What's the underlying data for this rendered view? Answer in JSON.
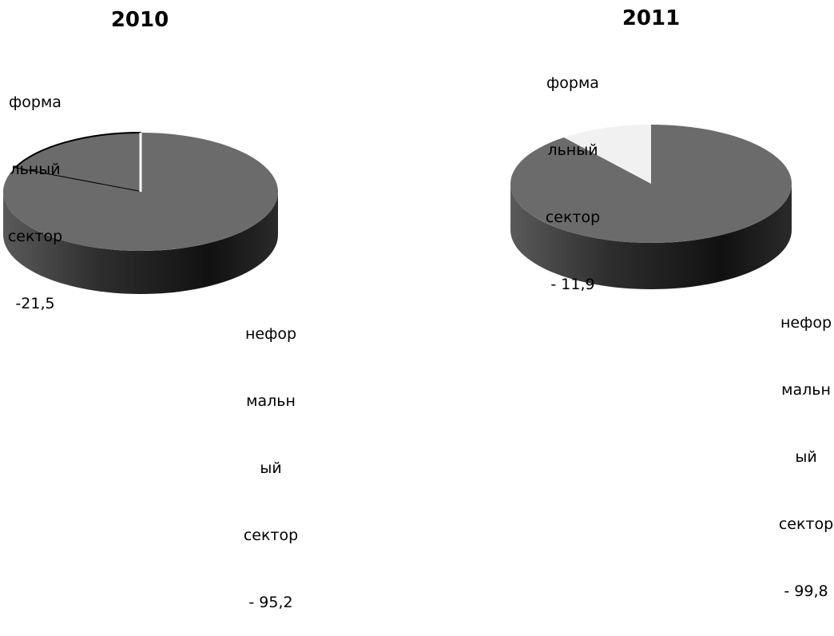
{
  "chart_data": [
    {
      "type": "pie",
      "title": "2010",
      "slices": [
        {
          "label_lines": [
            "форма",
            "льный",
            "сектор",
            "-21,5"
          ],
          "value": 21.5,
          "color": "#6b6b6b"
        },
        {
          "label_lines": [
            "нефор",
            "мальн",
            "ый",
            "сектор",
            "- 95,2"
          ],
          "value": 95.2,
          "color": "#6b6b6b"
        }
      ]
    },
    {
      "type": "pie",
      "title": "2011",
      "slices": [
        {
          "label_lines": [
            "форма",
            "льный",
            "сектор",
            "- 11,9"
          ],
          "value": 11.9,
          "color": "#f1f1f1"
        },
        {
          "label_lines": [
            "нефор",
            "мальн",
            "ый",
            "сектор",
            "- 99,8"
          ],
          "value": 99.8,
          "color": "#6b6b6b"
        }
      ]
    }
  ]
}
